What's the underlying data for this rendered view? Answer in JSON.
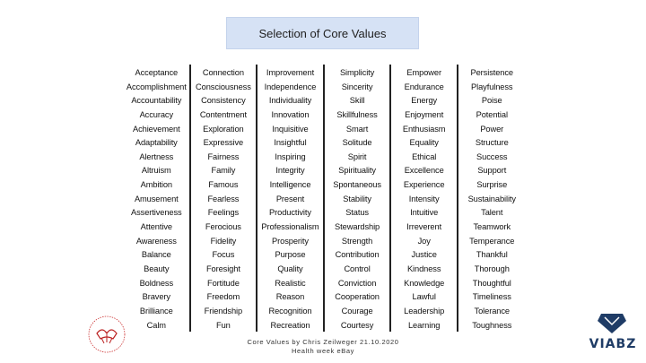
{
  "slide": {
    "title": "Selection of Core Values",
    "footer_line1": "Core Values by Chris Zeilweger 21.10.2020",
    "footer_line2": "Health week eBay",
    "brand": "VIABZ"
  },
  "columns": [
    [
      "Acceptance",
      "Accomplishment",
      "Accountability",
      "Accuracy",
      "Achievement",
      "Adaptability",
      "Alertness",
      "Altruism",
      "Ambition",
      "Amusement",
      "Assertiveness",
      "Attentive",
      "Awareness",
      "Balance",
      "Beauty",
      "Boldness",
      "Bravery",
      "Brilliance",
      "Calm"
    ],
    [
      "Connection",
      "Consciousness",
      "Consistency",
      "Contentment",
      "Exploration",
      "Expressive",
      "Fairness",
      "Family",
      "Famous",
      "Fearless",
      "Feelings",
      "Ferocious",
      "Fidelity",
      "Focus",
      "Foresight",
      "Fortitude",
      "Freedom",
      "Friendship",
      "Fun"
    ],
    [
      "Improvement",
      "Independence",
      "Individuality",
      "Innovation",
      "Inquisitive",
      "Insightful",
      "Inspiring",
      "Integrity",
      "Intelligence",
      "Present",
      "Productivity",
      "Professionalism",
      "Prosperity",
      "Purpose",
      "Quality",
      "Realistic",
      "Reason",
      "Recognition",
      "Recreation"
    ],
    [
      "Simplicity",
      "Sincerity",
      "Skill",
      "Skillfulness",
      "Smart",
      "Solitude",
      "Spirit",
      "Spirituality",
      "Spontaneous",
      "Stability",
      "Status",
      "Stewardship",
      "Strength",
      "Contribution",
      "Control",
      "Conviction",
      "Cooperation",
      "Courage",
      "Courtesy"
    ],
    [
      "Empower",
      "Endurance",
      "Energy",
      "Enjoyment",
      "Enthusiasm",
      "Equality",
      "Ethical",
      "Excellence",
      "Experience",
      "Intensity",
      "Intuitive",
      "Irreverent",
      "Joy",
      "Justice",
      "Kindness",
      "Knowledge",
      "Lawful",
      "Leadership",
      "Learning"
    ],
    [
      "Persistence",
      "Playfulness",
      "Poise",
      "Potential",
      "Power",
      "Structure",
      "Success",
      "Support",
      "Surprise",
      "Sustainability",
      "Talent",
      "Teamwork",
      "Temperance",
      "Thankful",
      "Thorough",
      "Thoughtful",
      "Timeliness",
      "Tolerance",
      "Toughness"
    ]
  ]
}
